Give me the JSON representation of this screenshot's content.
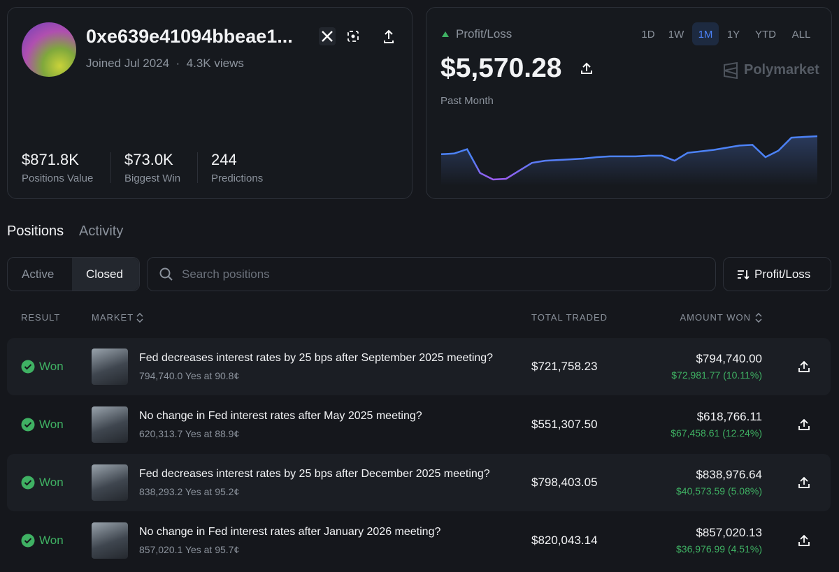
{
  "profile": {
    "name": "0xe639e41094bbeae1...",
    "joined": "Joined Jul 2024",
    "separator": "·",
    "views": "4.3K views",
    "stats": [
      {
        "value": "$871.8K",
        "label": "Positions Value"
      },
      {
        "value": "$73.0K",
        "label": "Biggest Win"
      },
      {
        "value": "244",
        "label": "Predictions"
      }
    ]
  },
  "pnl": {
    "label": "Profit/Loss",
    "ranges": [
      "1D",
      "1W",
      "1M",
      "1Y",
      "YTD",
      "ALL"
    ],
    "active_range": "1M",
    "amount": "$5,570.28",
    "brand": "Polymarket",
    "period": "Past Month",
    "chart": {
      "type": "line",
      "color": "#4c82f7",
      "values": [
        41,
        42,
        48,
        15,
        6,
        7,
        18,
        29,
        32,
        33,
        34,
        35,
        37,
        38,
        38,
        38,
        39,
        39,
        32,
        43,
        45,
        47,
        50,
        53,
        54,
        37,
        46,
        64,
        65,
        66
      ]
    }
  },
  "tabs": [
    "Positions",
    "Activity"
  ],
  "filters": [
    "Active",
    "Closed"
  ],
  "search_placeholder": "Search positions",
  "sort": "Profit/Loss",
  "table": {
    "columns": [
      "RESULT",
      "MARKET",
      "TOTAL TRADED",
      "AMOUNT WON"
    ],
    "rows": [
      {
        "result": "Won",
        "market": "Fed decreases interest rates by 25 bps after September 2025 meeting?",
        "detail": "794,740.0 Yes at 90.8¢",
        "total_traded": "$721,758.23",
        "amount_won": "$794,740.00",
        "profit": "$72,981.77 (10.11%)"
      },
      {
        "result": "Won",
        "market": "No change in Fed interest rates after May 2025 meeting?",
        "detail": "620,313.7 Yes at 88.9¢",
        "total_traded": "$551,307.50",
        "amount_won": "$618,766.11",
        "profit": "$67,458.61 (12.24%)"
      },
      {
        "result": "Won",
        "market": "Fed decreases interest rates by 25 bps after December 2025 meeting?",
        "detail": "838,293.2 Yes at 95.2¢",
        "total_traded": "$798,403.05",
        "amount_won": "$838,976.64",
        "profit": "$40,573.59 (5.08%)"
      },
      {
        "result": "Won",
        "market": "No change in Fed interest rates after January 2026 meeting?",
        "detail": "857,020.1 Yes at 95.7¢",
        "total_traded": "$820,043.14",
        "amount_won": "$857,020.13",
        "profit": "$36,976.99 (4.51%)"
      }
    ]
  }
}
